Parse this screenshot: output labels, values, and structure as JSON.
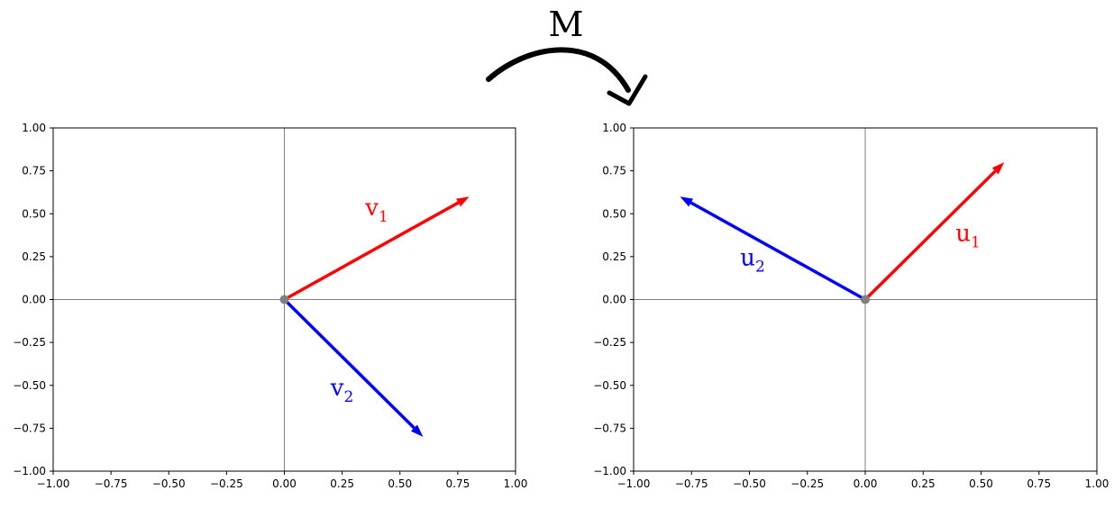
{
  "transform_label": "M",
  "chart_data": [
    {
      "type": "vector",
      "xlim": [
        -1.0,
        1.0
      ],
      "ylim": [
        -1.0,
        1.0
      ],
      "x_ticks": [
        "−1.00",
        "−0.75",
        "−0.50",
        "−0.25",
        "0.00",
        "0.25",
        "0.50",
        "0.75",
        "1.00"
      ],
      "y_ticks": [
        "1.00",
        "0.75",
        "0.50",
        "0.25",
        "0.00",
        "−0.25",
        "−0.50",
        "−0.75",
        "−1.00"
      ],
      "origin_color": "#808080",
      "vectors": [
        {
          "name": "v",
          "sub": "1",
          "x": 0.8,
          "y": 0.6,
          "color": "#ff0000",
          "label_at": [
            0.35,
            0.49
          ]
        },
        {
          "name": "v",
          "sub": "2",
          "x": 0.6,
          "y": -0.8,
          "color": "#0000ff",
          "label_at": [
            0.2,
            -0.56
          ]
        }
      ]
    },
    {
      "type": "vector",
      "xlim": [
        -1.0,
        1.0
      ],
      "ylim": [
        -1.0,
        1.0
      ],
      "x_ticks": [
        "−1.00",
        "−0.75",
        "−0.50",
        "−0.25",
        "0.00",
        "0.25",
        "0.50",
        "0.75",
        "1.00"
      ],
      "y_ticks": [
        "1.00",
        "0.75",
        "0.50",
        "0.25",
        "0.00",
        "−0.25",
        "−0.50",
        "−0.75",
        "−1.00"
      ],
      "origin_color": "#808080",
      "vectors": [
        {
          "name": "u",
          "sub": "1",
          "x": 0.6,
          "y": 0.8,
          "color": "#ff0000",
          "label_at": [
            0.39,
            0.34
          ]
        },
        {
          "name": "u",
          "sub": "2",
          "x": -0.8,
          "y": 0.6,
          "color": "#0000ff",
          "label_at": [
            -0.54,
            0.2
          ]
        }
      ]
    }
  ]
}
